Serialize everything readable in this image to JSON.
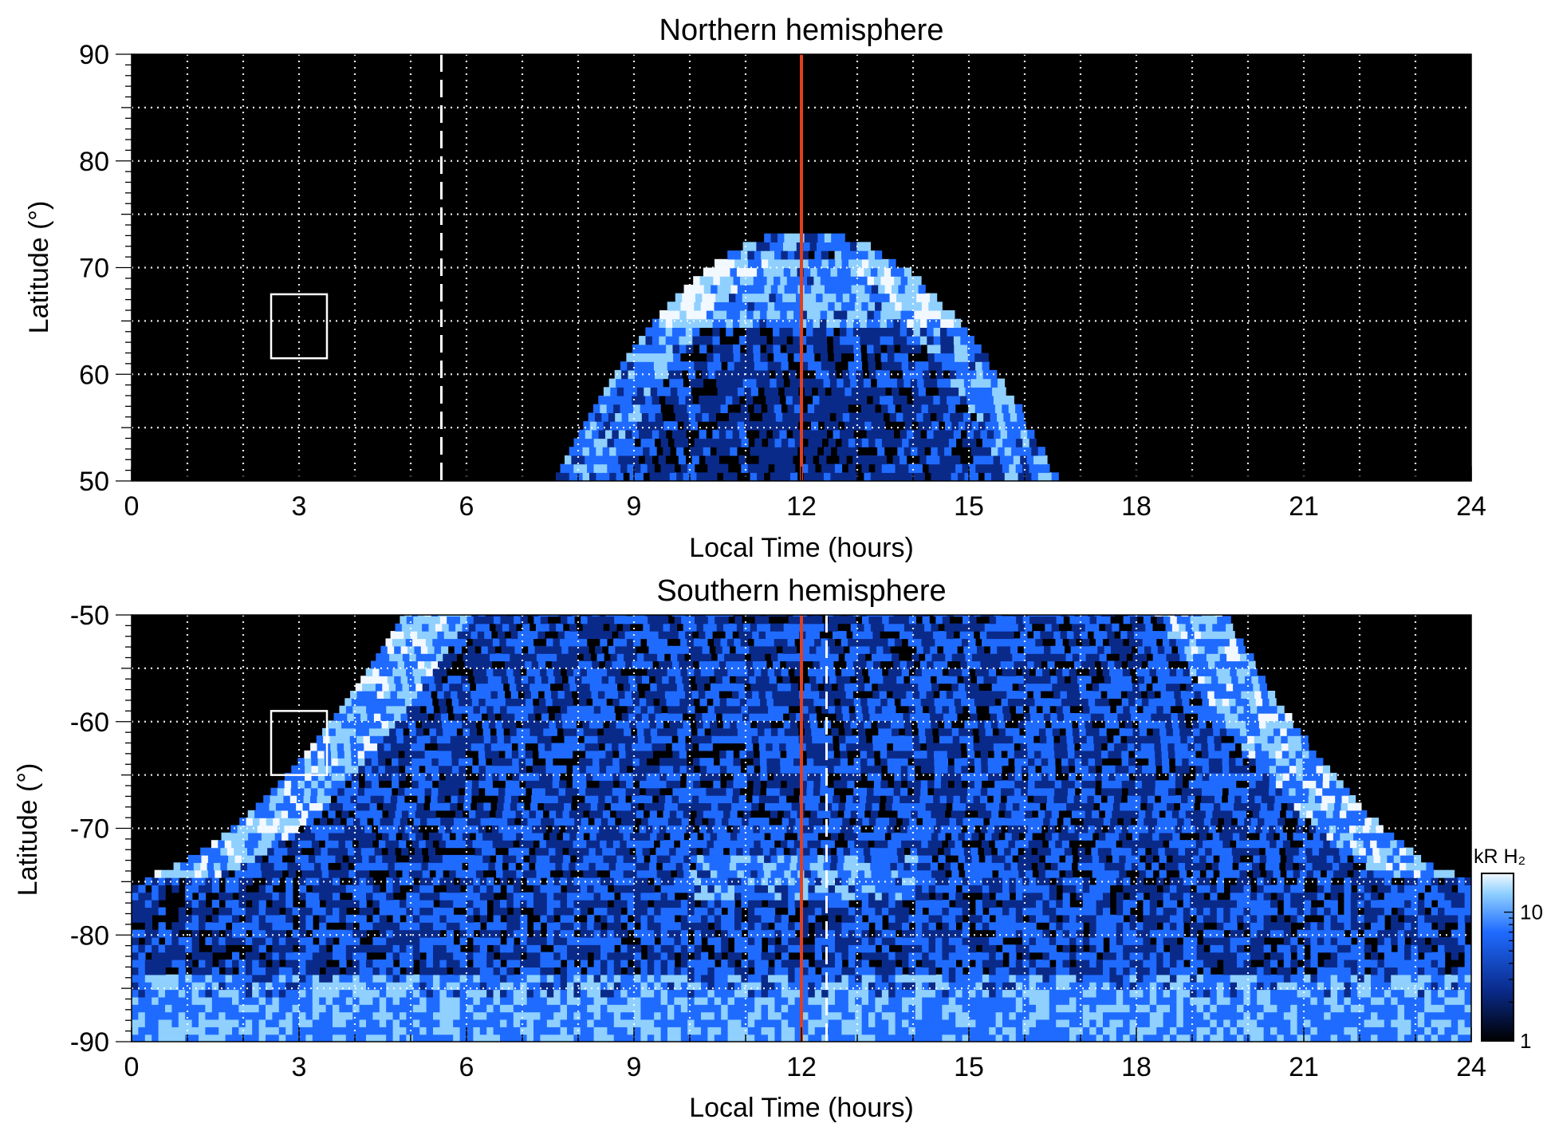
{
  "colors": {
    "background": "#000000",
    "emission_dim": "#0a2a8a",
    "emission_mid": "#1f6bff",
    "emission_bright": "#8fd0ff",
    "emission_peak": "#f2f8ff",
    "noon_line": "#e0401f",
    "grid": "#ffffff"
  },
  "chart_data": [
    {
      "type": "heatmap",
      "title": "Northern hemisphere",
      "xlabel": "Local Time (hours)",
      "ylabel": "Latitude (°)",
      "xlim": [
        0,
        24
      ],
      "ylim": [
        50,
        90
      ],
      "xticks": [
        0,
        3,
        6,
        9,
        12,
        15,
        18,
        21,
        24
      ],
      "yticks": [
        50,
        60,
        70,
        80,
        90
      ],
      "grid": true,
      "noon_line_lt": 12,
      "dashed_line_lt": 5.55,
      "box": {
        "lt": [
          2.5,
          3.5
        ],
        "lat": [
          61.5,
          67.5
        ]
      },
      "emission_region": {
        "lt_range": [
          7.6,
          16.5
        ],
        "peak_lat": 73,
        "bright_band_lat": [
          64,
          70
        ]
      }
    },
    {
      "type": "heatmap",
      "title": "Southern hemisphere",
      "xlabel": "Local Time (hours)",
      "ylabel": "Latitude (°)",
      "xlim": [
        0,
        24
      ],
      "ylim": [
        -90,
        -50
      ],
      "xticks": [
        0,
        3,
        6,
        9,
        12,
        15,
        18,
        21,
        24
      ],
      "yticks": [
        -90,
        -80,
        -70,
        -60,
        -50
      ],
      "grid": true,
      "noon_line_lt": 12,
      "dashed_line_lt": 12.45,
      "box": {
        "lt": [
          2.5,
          3.5
        ],
        "lat": [
          -65,
          -59
        ]
      },
      "emission_region": {
        "dawn_edge_lt_at_minus50": 4.9,
        "dusk_edge_lt_at_minus50": 19.5,
        "band_lat": -75
      },
      "colorbar": {
        "label": "kR H₂",
        "scale": "log",
        "range": [
          1,
          20
        ],
        "tick_labels": [
          "1",
          "10"
        ]
      }
    }
  ]
}
